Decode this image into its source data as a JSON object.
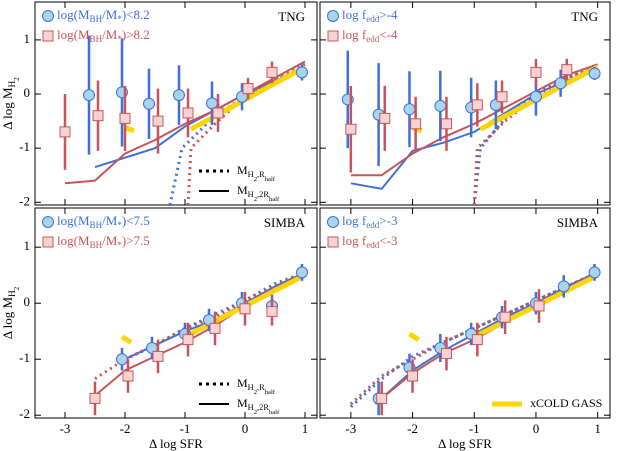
{
  "chart_data": [
    {
      "type": "scatter",
      "title": "TNG",
      "xlim": [
        -3.5,
        1.2
      ],
      "ylim": [
        -2.05,
        1.7
      ],
      "xticks": [
        -3,
        -2,
        -1,
        0,
        1
      ],
      "yticks": [
        -2,
        -1,
        0,
        1
      ],
      "xtick_labels": false,
      "ytick_labels": true,
      "ylabel": [
        {
          "text": "Δ log M"
        },
        {
          "text": "H",
          "sub": 1
        },
        {
          "text": "2",
          "sub": 2
        }
      ],
      "series": [
        {
          "name": [
            {
              "text": "log(M"
            },
            {
              "text": "BH",
              "sub": 1
            },
            {
              "text": "/M"
            },
            {
              "text": "*",
              "sub": 1
            },
            {
              "text": ")<8.2"
            }
          ],
          "color": "#3f6fd8",
          "fill": "#a8d4ee",
          "marker": "circle",
          "x": [
            -2.6,
            -2.05,
            -1.6,
            -1.1,
            -0.55,
            -0.05,
            0.95
          ],
          "values": [
            -0.02,
            0.03,
            -0.18,
            -0.02,
            -0.17,
            -0.05,
            0.4
          ],
          "errors": [
            1.1,
            1.0,
            0.65,
            0.55,
            0.4,
            0.25,
            0.15
          ]
        },
        {
          "name": [
            {
              "text": "log(M"
            },
            {
              "text": "BH",
              "sub": 1
            },
            {
              "text": "/M"
            },
            {
              "text": "*",
              "sub": 1
            },
            {
              "text": ")>8.2"
            }
          ],
          "color": "#c8545a",
          "fill": "#f6d3d3",
          "marker": "square",
          "x": [
            -3.0,
            -2.45,
            -2.0,
            -1.45,
            -0.95,
            -0.45,
            0.05,
            0.45
          ],
          "values": [
            -0.7,
            -0.4,
            -0.45,
            -0.5,
            -0.35,
            -0.35,
            0.1,
            0.4
          ],
          "errors": [
            0.7,
            0.65,
            0.6,
            0.6,
            0.45,
            0.35,
            0.2,
            0.2
          ]
        }
      ],
      "lines": [
        {
          "color": "#3f6fd8",
          "dash": false,
          "x": [
            -2.5,
            -1.5,
            -1.0,
            -0.5,
            0,
            0.5,
            1
          ],
          "values": [
            -1.35,
            -1.0,
            -0.6,
            -0.3,
            0,
            0.25,
            0.45
          ]
        },
        {
          "color": "#c8545a",
          "dash": false,
          "x": [
            -3,
            -2.5,
            -2,
            -1.5,
            -1,
            -0.5,
            0,
            0.5,
            1
          ],
          "values": [
            -1.65,
            -1.6,
            -1.1,
            -0.85,
            -0.55,
            -0.3,
            0,
            0.3,
            0.6
          ]
        },
        {
          "color": "#3f6fd8",
          "dash": true,
          "x": [
            -1.25,
            -1.05,
            -0.5,
            0,
            0.5,
            1
          ],
          "values": [
            -2.05,
            -1.0,
            -0.4,
            -0.05,
            0.25,
            0.5
          ]
        },
        {
          "color": "#c8545a",
          "dash": true,
          "x": [
            -0.95,
            -0.9,
            -0.5,
            0,
            0.5,
            1
          ],
          "values": [
            -2.05,
            -1.0,
            -0.55,
            -0.05,
            0.3,
            0.55
          ]
        },
        {
          "color": "#ffd500",
          "dash": false,
          "width": 5,
          "x": [
            -2.0,
            -1.85,
            null,
            -0.9,
            1.0
          ],
          "values": [
            -0.62,
            -0.68,
            null,
            -0.65,
            0.5
          ]
        }
      ],
      "line_legend": [
        {
          "name": [
            {
              "text": "M"
            },
            {
              "text": "H",
              "sub": 1
            },
            {
              "text": "2",
              "sub": 2
            },
            {
              "text": ",R",
              "sub": 1
            },
            {
              "text": "half",
              "sub": 2
            }
          ],
          "color": "#000000",
          "dash": true
        },
        {
          "name": [
            {
              "text": "M"
            },
            {
              "text": "H",
              "sub": 1
            },
            {
              "text": "2",
              "sub": 2
            },
            {
              "text": ",2R",
              "sub": 1
            },
            {
              "text": "half",
              "sub": 2
            }
          ],
          "color": "#000000",
          "dash": false
        }
      ]
    },
    {
      "type": "scatter",
      "title": "TNG",
      "xlim": [
        -3.5,
        1.2
      ],
      "ylim": [
        -2.05,
        1.7
      ],
      "xticks": [
        -3,
        -2,
        -1,
        0,
        1
      ],
      "yticks": [
        -2,
        -1,
        0,
        1
      ],
      "xtick_labels": false,
      "ytick_labels": false,
      "series": [
        {
          "name": [
            {
              "text": "log f"
            },
            {
              "text": "edd",
              "sub": 1
            },
            {
              "text": ">-4"
            }
          ],
          "color": "#3f6fd8",
          "fill": "#a8d4ee",
          "marker": "circle",
          "x": [
            -3.05,
            -2.55,
            -2.05,
            -1.55,
            -1.05,
            -0.65,
            0.0,
            0.4,
            0.95
          ],
          "values": [
            -0.1,
            -0.38,
            -0.28,
            -0.22,
            -0.25,
            -0.2,
            -0.05,
            0.2,
            0.38
          ],
          "errors": [
            0.9,
            0.95,
            0.7,
            0.65,
            0.55,
            0.45,
            0.35,
            0.25,
            0.12
          ]
        },
        {
          "name": [
            {
              "text": "log f"
            },
            {
              "text": "edd",
              "sub": 1
            },
            {
              "text": "<-4"
            }
          ],
          "color": "#c8545a",
          "fill": "#f6d3d3",
          "marker": "square",
          "x": [
            -3.0,
            -2.45,
            -1.95,
            -1.45,
            -0.95,
            -0.55,
            0.0,
            0.5
          ],
          "values": [
            -0.65,
            -0.45,
            -0.55,
            -0.55,
            -0.2,
            -0.05,
            0.4,
            0.45
          ],
          "errors": [
            0.8,
            0.6,
            0.5,
            0.5,
            0.4,
            0.3,
            0.25,
            0.2
          ]
        }
      ],
      "lines": [
        {
          "color": "#3f6fd8",
          "dash": false,
          "x": [
            -3,
            -2.5,
            -2,
            -1.5,
            -1,
            -0.5,
            0,
            0.5,
            1
          ],
          "values": [
            -1.65,
            -1.75,
            -1.05,
            -0.9,
            -0.7,
            -0.35,
            0,
            0.25,
            0.45
          ]
        },
        {
          "color": "#c8545a",
          "dash": false,
          "x": [
            -3,
            -2.5,
            -2,
            -1.5,
            -1,
            -0.5,
            0,
            0.5,
            1
          ],
          "values": [
            -1.5,
            -1.5,
            -1.1,
            -0.8,
            -0.55,
            -0.25,
            0.05,
            0.35,
            0.55
          ]
        },
        {
          "color": "#3f6fd8",
          "dash": true,
          "x": [
            -1.0,
            -0.9,
            -0.5,
            0,
            0.5,
            1
          ],
          "values": [
            -2.05,
            -1.0,
            -0.45,
            0.0,
            0.3,
            0.5
          ]
        },
        {
          "color": "#c8545a",
          "dash": true,
          "x": [
            -1.0,
            -0.95,
            -0.5,
            0,
            0.5,
            1
          ],
          "values": [
            -2.05,
            -1.0,
            -0.5,
            -0.05,
            0.3,
            0.5
          ]
        },
        {
          "color": "#ffd500",
          "dash": false,
          "width": 5,
          "x": [
            -2.0,
            -1.85,
            null,
            -0.9,
            1.0
          ],
          "values": [
            -0.62,
            -0.68,
            null,
            -0.65,
            0.5
          ]
        }
      ]
    },
    {
      "type": "scatter",
      "title": "SIMBA",
      "xlim": [
        -3.5,
        1.2
      ],
      "ylim": [
        -2.05,
        1.7
      ],
      "xticks": [
        -3,
        -2,
        -1,
        0,
        1
      ],
      "yticks": [
        -2,
        -1,
        0,
        1
      ],
      "xtick_labels": true,
      "ytick_labels": true,
      "xlabel": "Δ log SFR",
      "ylabel": [
        {
          "text": "Δ log M"
        },
        {
          "text": "H",
          "sub": 1
        },
        {
          "text": "2",
          "sub": 2
        }
      ],
      "series": [
        {
          "name": [
            {
              "text": "log(M"
            },
            {
              "text": "BH",
              "sub": 1
            },
            {
              "text": "/M"
            },
            {
              "text": "*",
              "sub": 1
            },
            {
              "text": ")<7.5"
            }
          ],
          "color": "#3f6fd8",
          "fill": "#a8d4ee",
          "marker": "circle",
          "x": [
            -2.05,
            -1.55,
            -1.0,
            -0.6,
            -0.05,
            0.45,
            0.95
          ],
          "values": [
            -1.0,
            -0.8,
            -0.55,
            -0.3,
            0.0,
            -0.05,
            0.55
          ],
          "errors": [
            0.2,
            0.2,
            0.2,
            0.2,
            0.2,
            0.2,
            0.15
          ]
        },
        {
          "name": [
            {
              "text": "log(M"
            },
            {
              "text": "BH",
              "sub": 1
            },
            {
              "text": "/M"
            },
            {
              "text": "*",
              "sub": 1
            },
            {
              "text": ")>7.5"
            }
          ],
          "color": "#c8545a",
          "fill": "#f6d3d3",
          "marker": "square",
          "x": [
            -2.5,
            -1.95,
            -1.45,
            -0.95,
            -0.5,
            0.0,
            0.45
          ],
          "values": [
            -1.7,
            -1.3,
            -0.95,
            -0.65,
            -0.45,
            -0.1,
            -0.15
          ],
          "errors": [
            0.3,
            0.3,
            0.3,
            0.3,
            0.3,
            0.3,
            0.25
          ]
        }
      ],
      "lines": [
        {
          "color": "#3f6fd8",
          "dash": false,
          "x": [
            -2,
            -1.5,
            -1,
            -0.5,
            0,
            0.5,
            1
          ],
          "values": [
            -1.0,
            -0.75,
            -0.5,
            -0.3,
            0,
            0.3,
            0.55
          ]
        },
        {
          "color": "#c8545a",
          "dash": false,
          "x": [
            -2.5,
            -2,
            -1.5,
            -1,
            -0.5,
            0,
            0.5,
            1
          ],
          "values": [
            -1.65,
            -1.2,
            -0.95,
            -0.7,
            -0.4,
            -0.05,
            0.25,
            0.55
          ]
        },
        {
          "color": "#3f6fd8",
          "dash": true,
          "x": [
            -2.1,
            -1.5,
            -1,
            -0.5,
            0,
            0.5,
            1
          ],
          "values": [
            -1.05,
            -0.75,
            -0.45,
            -0.2,
            0.05,
            0.35,
            0.55
          ]
        },
        {
          "color": "#c8545a",
          "dash": true,
          "x": [
            -2.5,
            -2,
            -1.5,
            -1,
            -0.5,
            0,
            0.5,
            1
          ],
          "values": [
            -1.35,
            -1.0,
            -0.75,
            -0.45,
            -0.25,
            0.05,
            0.3,
            0.55
          ]
        },
        {
          "color": "#ffd500",
          "dash": false,
          "width": 5,
          "x": [
            -2.05,
            -1.9,
            null,
            -1.0,
            1.0
          ],
          "values": [
            -0.6,
            -0.7,
            null,
            -0.6,
            0.5
          ]
        }
      ],
      "line_legend": [
        {
          "name": [
            {
              "text": "M"
            },
            {
              "text": "H",
              "sub": 1
            },
            {
              "text": "2",
              "sub": 2
            },
            {
              "text": ",R",
              "sub": 1
            },
            {
              "text": "half",
              "sub": 2
            }
          ],
          "color": "#000000",
          "dash": true
        },
        {
          "name": [
            {
              "text": "M"
            },
            {
              "text": "H",
              "sub": 1
            },
            {
              "text": "2",
              "sub": 2
            },
            {
              "text": ",2R",
              "sub": 1
            },
            {
              "text": "half",
              "sub": 2
            }
          ],
          "color": "#000000",
          "dash": false
        }
      ]
    },
    {
      "type": "scatter",
      "title": "SIMBA",
      "xlim": [
        -3.5,
        1.2
      ],
      "ylim": [
        -2.05,
        1.7
      ],
      "xticks": [
        -3,
        -2,
        -1,
        0,
        1
      ],
      "yticks": [
        -2,
        -1,
        0,
        1
      ],
      "xtick_labels": true,
      "ytick_labels": false,
      "xlabel": "Δ log SFR",
      "series": [
        {
          "name": [
            {
              "text": "log f"
            },
            {
              "text": "edd",
              "sub": 1
            },
            {
              "text": ">-3"
            }
          ],
          "color": "#3f6fd8",
          "fill": "#a8d4ee",
          "marker": "circle",
          "x": [
            -2.55,
            -2.05,
            -1.55,
            -1.05,
            -0.55,
            0.0,
            0.45,
            0.95
          ],
          "values": [
            -1.7,
            -1.15,
            -0.8,
            -0.55,
            -0.25,
            0.0,
            0.3,
            0.55
          ],
          "errors": [
            0.3,
            0.25,
            0.25,
            0.2,
            0.2,
            0.2,
            0.2,
            0.15
          ]
        },
        {
          "name": [
            {
              "text": "log f"
            },
            {
              "text": "edd",
              "sub": 1
            },
            {
              "text": "<-3"
            }
          ],
          "color": "#c8545a",
          "fill": "#f6d3d3",
          "marker": "square",
          "x": [
            -2.5,
            -2.0,
            -1.45,
            -0.95,
            -0.5,
            0.05
          ],
          "values": [
            -1.7,
            -1.3,
            -0.9,
            -0.65,
            -0.25,
            -0.05
          ],
          "errors": [
            0.3,
            0.3,
            0.3,
            0.3,
            0.3,
            0.3
          ]
        }
      ],
      "lines": [
        {
          "color": "#3f6fd8",
          "dash": false,
          "x": [
            -2.6,
            -2,
            -1.5,
            -1,
            -0.5,
            0,
            0.5,
            1
          ],
          "values": [
            -1.8,
            -1.2,
            -0.85,
            -0.55,
            -0.25,
            0,
            0.3,
            0.55
          ]
        },
        {
          "color": "#c8545a",
          "dash": false,
          "x": [
            -2.5,
            -2,
            -1.5,
            -1,
            -0.5,
            0,
            0.5,
            1
          ],
          "values": [
            -1.7,
            -1.25,
            -0.9,
            -0.65,
            -0.35,
            -0.05,
            0.25,
            0.55
          ]
        },
        {
          "color": "#3f6fd8",
          "dash": true,
          "x": [
            -3,
            -2.5,
            -2,
            -1.5,
            -1,
            -0.5,
            0,
            0.5,
            1
          ],
          "values": [
            -1.85,
            -1.35,
            -0.95,
            -0.7,
            -0.45,
            -0.2,
            0.05,
            0.3,
            0.55
          ]
        },
        {
          "color": "#c8545a",
          "dash": true,
          "x": [
            -3,
            -2.5,
            -2,
            -1.5,
            -1,
            -0.5,
            0,
            0.5,
            1
          ],
          "values": [
            -1.8,
            -1.3,
            -1.0,
            -0.7,
            -0.45,
            -0.2,
            0.05,
            0.3,
            0.55
          ]
        },
        {
          "color": "#ffd500",
          "dash": false,
          "width": 5,
          "x": [
            -2.05,
            -1.9,
            null,
            -1.0,
            1.0
          ],
          "values": [
            -0.55,
            -0.65,
            null,
            -0.6,
            0.5
          ]
        }
      ],
      "line_legend": [
        {
          "name": [
            {
              "text": "xCOLD GASS"
            }
          ],
          "color": "#ffd500",
          "dash": false,
          "width": 5
        }
      ]
    }
  ]
}
